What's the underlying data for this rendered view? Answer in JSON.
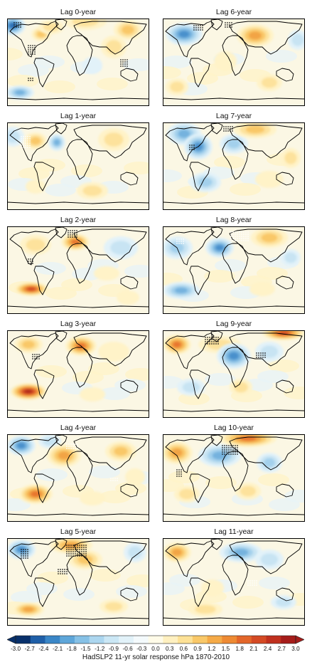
{
  "panels": [
    {
      "title": "Lag 0-year"
    },
    {
      "title": "Lag 6-year"
    },
    {
      "title": "Lag 1-year"
    },
    {
      "title": "Lag 7-year"
    },
    {
      "title": "Lag 2-year"
    },
    {
      "title": "Lag 8-year"
    },
    {
      "title": "Lag 3-year"
    },
    {
      "title": "Lag 9-year"
    },
    {
      "title": "Lag 4-year"
    },
    {
      "title": "Lag 10-year"
    },
    {
      "title": "Lag 5-year"
    },
    {
      "title": "Lag 11-year"
    }
  ],
  "colorbar": {
    "caption": "HadSLP2 11-yr solar response hPa 1870-2010",
    "ticks": [
      "-3.0",
      "-2.7",
      "-2.4",
      "-2.1",
      "-1.8",
      "-1.5",
      "-1.2",
      "-0.9",
      "-0.6",
      "-0.3",
      "0.0",
      "0.3",
      "0.6",
      "0.9",
      "1.2",
      "1.5",
      "1.8",
      "2.1",
      "2.4",
      "2.7",
      "3.0"
    ],
    "colors": [
      "#08306b",
      "#1f5fa8",
      "#3a86c7",
      "#5ea6d9",
      "#86c1e6",
      "#acd6ef",
      "#cbe7f5",
      "#e2f2f9",
      "#f4fafc",
      "#fffbe8",
      "#fff0c0",
      "#fde196",
      "#f9c868",
      "#f5aa47",
      "#ee8a33",
      "#e3662a",
      "#d44a24",
      "#c0301e",
      "#a51c1a"
    ]
  }
}
